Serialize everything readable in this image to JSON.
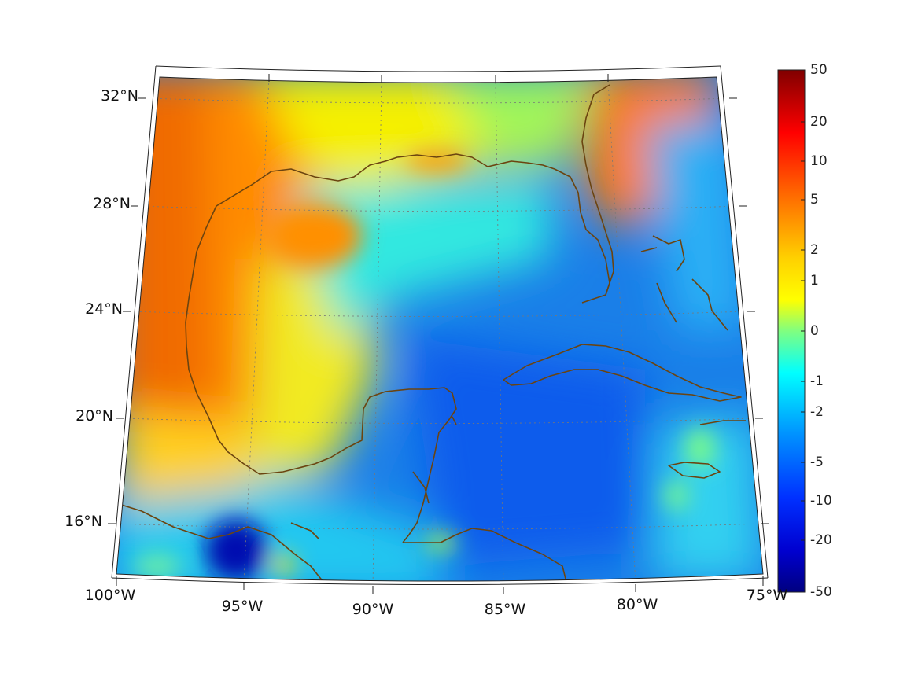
{
  "map": {
    "region": "Gulf of Mexico and Caribbean",
    "projection": "lambert-conformal-conic",
    "lat_labels": [
      "32°N",
      "28°N",
      "24°N",
      "20°N",
      "16°N"
    ],
    "lon_labels": [
      "100°W",
      "95°W",
      "90°W",
      "85°W",
      "80°W",
      "75°W"
    ],
    "coastline_color": "#6b4410"
  },
  "colorbar": {
    "colormap": "jet",
    "ticks": [
      "50",
      "20",
      "10",
      "5",
      "2",
      "1",
      "0",
      "-1",
      "-2",
      "-5",
      "-10",
      "-20",
      "-50"
    ]
  }
}
